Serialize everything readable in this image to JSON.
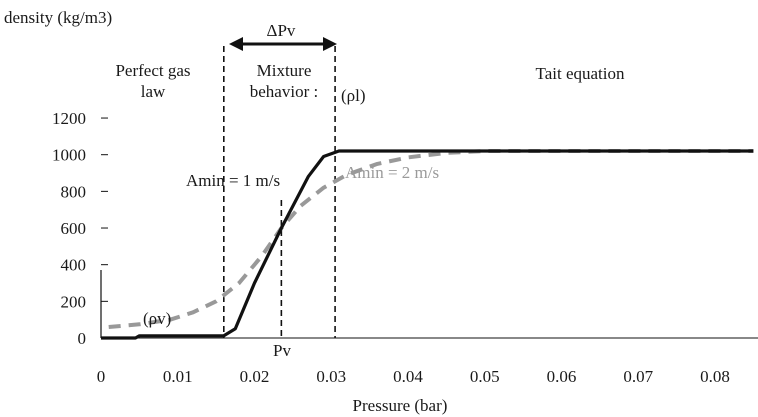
{
  "chart_data": {
    "type": "line",
    "ylabel": "density (kg/m3)",
    "xlabel": "Pressure (bar)",
    "xlim": [
      0,
      0.085
    ],
    "ylim": [
      0,
      1200
    ],
    "x_ticks": [
      0,
      0.01,
      0.02,
      0.03,
      0.04,
      0.05,
      0.06,
      0.07,
      0.08
    ],
    "x_tick_labels": [
      "0",
      "0.01",
      "0.02",
      "0.03",
      "0.04",
      "0.05",
      "0.06",
      "0.07",
      "0.08"
    ],
    "y_ticks": [
      0,
      200,
      400,
      600,
      800,
      1000,
      1200
    ],
    "y_tick_labels": [
      "0",
      "200",
      "400",
      "600",
      "800",
      "1000",
      "1200"
    ],
    "grid": false,
    "series": [
      {
        "name": "Amin = 1 m/s",
        "color": "#111111",
        "style": "solid",
        "x": [
          0,
          0.0045,
          0.005,
          0.016,
          0.0175,
          0.02,
          0.0235,
          0.027,
          0.029,
          0.031,
          0.085
        ],
        "y": [
          0,
          0,
          12,
          12,
          50,
          300,
          600,
          880,
          990,
          1020,
          1020
        ]
      },
      {
        "name": "Amin = 2 m/s",
        "color": "#999999",
        "style": "dashed",
        "x": [
          0.001,
          0.005,
          0.009,
          0.012,
          0.015,
          0.018,
          0.021,
          0.0235,
          0.026,
          0.029,
          0.032,
          0.036,
          0.04,
          0.045,
          0.05,
          0.085
        ],
        "y": [
          60,
          75,
          100,
          140,
          200,
          300,
          450,
          600,
          720,
          820,
          890,
          950,
          985,
          1010,
          1020,
          1020
        ]
      }
    ],
    "vertical_lines": [
      {
        "x": 0.016,
        "label": ""
      },
      {
        "x": 0.0235,
        "label": "Pv"
      },
      {
        "x": 0.0305,
        "label": ""
      }
    ],
    "annotations": {
      "delta_pv": "ΔPv",
      "perfect_gas_line1": "Perfect gas",
      "perfect_gas_line2": "law",
      "mixture_line1": "Mixture",
      "mixture_line2": "behavior :",
      "tait": "Tait equation",
      "rho_l": "(ρl)",
      "rho_v": "(ρv)",
      "pv": "Pv",
      "amin1": "Amin = 1 m/s",
      "amin2": "Amin = 2 m/s"
    }
  }
}
